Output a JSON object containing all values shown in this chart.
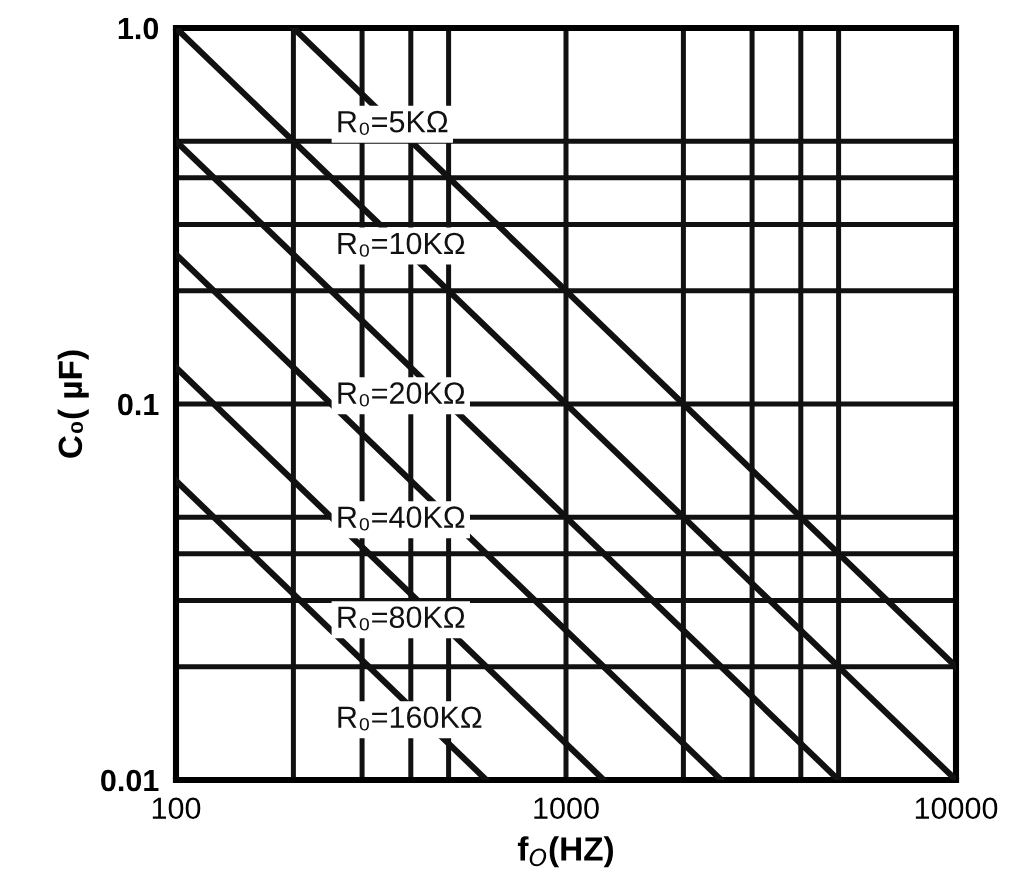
{
  "chart_data": {
    "type": "line",
    "xlabel": "f$_{O}$(HZ)",
    "ylabel": "C₀( µF)",
    "log": "xy",
    "grid": true,
    "legend": false,
    "line_style": "solid",
    "marker": "none",
    "xlim": [
      100,
      10000
    ],
    "ylim": [
      0.01,
      1
    ],
    "xticks": [
      100,
      {
        "value": 200,
        "label": null
      },
      {
        "value": 300,
        "label": null
      },
      {
        "value": 400,
        "label": null
      },
      {
        "value": 500,
        "label": null
      },
      1000,
      {
        "value": 2000,
        "label": null
      },
      {
        "value": 3000,
        "label": null
      },
      {
        "value": 4000,
        "label": null
      },
      {
        "value": 5000,
        "label": null
      },
      10000
    ],
    "yticks": [
      0.01,
      {
        "value": 0.02,
        "label": null
      },
      {
        "value": 0.03,
        "label": null
      },
      {
        "value": 0.04,
        "label": null
      },
      {
        "value": 0.05,
        "label": null
      },
      0.1,
      {
        "value": 0.2,
        "label": null
      },
      {
        "value": 0.3,
        "label": null
      },
      {
        "value": 0.4,
        "label": null
      },
      {
        "value": 0.5,
        "label": null
      },
      {
        "value": 1,
        "label": "1.0"
      }
    ],
    "series": [
      {
        "name": "R₀=5KΩ",
        "color": "#111111",
        "x": [
          200,
          10000
        ],
        "values": [
          1,
          0.02
        ]
      },
      {
        "name": "R₀=10KΩ",
        "color": "#111111",
        "x": [
          100,
          10000
        ],
        "values": [
          1,
          0.01
        ]
      },
      {
        "name": "R₀=20KΩ",
        "color": "#111111",
        "x": [
          100,
          5000
        ],
        "values": [
          0.5,
          0.01
        ]
      },
      {
        "name": "R₀=40KΩ",
        "color": "#111111",
        "x": [
          100,
          2500
        ],
        "values": [
          0.25,
          0.01
        ]
      },
      {
        "name": "R₀=80KΩ",
        "color": "#111111",
        "x": [
          100,
          1250
        ],
        "values": [
          0.125,
          0.01
        ]
      },
      {
        "name": "R₀=160KΩ",
        "color": "#111111",
        "x": [
          100,
          625
        ],
        "values": [
          0.0625,
          0.01
        ]
      }
    ]
  }
}
